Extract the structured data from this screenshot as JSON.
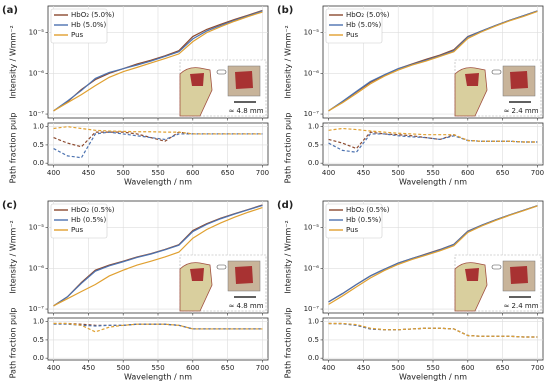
{
  "chart_data": [
    {
      "type": "line",
      "panel_label": "(a)",
      "ylabel": "Intensity / Wmm⁻²",
      "yscale": "log",
      "grid": true,
      "legend": "upper left",
      "annotation": "≈ 4.8 mm",
      "x": [
        400,
        420,
        440,
        460,
        480,
        500,
        520,
        540,
        560,
        580,
        600,
        620,
        640,
        660,
        680,
        700
      ],
      "xlim": [
        392,
        708
      ],
      "xticks": [
        400,
        450,
        500,
        550,
        600,
        650,
        700
      ],
      "ylim": [
        8e-08,
        4.5e-05
      ],
      "yticks": [
        {
          "value": 1e-07,
          "label": "10⁻⁷"
        },
        {
          "value": 1e-06,
          "label": "10⁻⁶"
        },
        {
          "value": 1e-05,
          "label": "10⁻⁵"
        }
      ],
      "series": [
        {
          "name": "HbO₂ (5.0%)",
          "color": "#8c4a2f",
          "values": [
            1.2e-07,
            2e-07,
            4e-07,
            7e-07,
            1e-06,
            1.3e-06,
            1.7e-06,
            2.1e-06,
            2.7e-06,
            3.6e-06,
            8e-06,
            1.2e-05,
            1.6e-05,
            2.1e-05,
            2.7e-05,
            3.5e-05
          ]
        },
        {
          "name": "Hb (5.0%)",
          "color": "#4c72b0",
          "values": [
            1.2e-07,
            2.1e-07,
            3.8e-07,
            7.5e-07,
            1.05e-06,
            1.3e-06,
            1.6e-06,
            2e-06,
            2.6e-06,
            3.4e-06,
            7e-06,
            1.1e-05,
            1.5e-05,
            2e-05,
            2.6e-05,
            3.4e-05
          ]
        },
        {
          "name": "Pus",
          "color": "#e0a030",
          "values": [
            1.2e-07,
            1.9e-07,
            3e-07,
            5e-07,
            8e-07,
            1.1e-06,
            1.4e-06,
            1.8e-06,
            2.3e-06,
            3e-06,
            6e-06,
            1e-05,
            1.4e-05,
            1.9e-05,
            2.5e-05,
            3.2e-05
          ]
        }
      ]
    },
    {
      "type": "line",
      "ylabel": "Path fraction pulp",
      "xlabel": "Wavelength / nm",
      "grid": true,
      "dashed": true,
      "x": [
        400,
        420,
        440,
        460,
        480,
        500,
        520,
        540,
        560,
        580,
        600,
        620,
        640,
        660,
        680,
        700
      ],
      "xlim": [
        392,
        708
      ],
      "xticks": [
        400,
        450,
        500,
        550,
        600,
        650,
        700
      ],
      "ylim": [
        -0.05,
        1.1
      ],
      "yticks": [
        {
          "value": 0,
          "label": "0.0"
        },
        0.5,
        {
          "value": 1,
          "label": "1.0"
        }
      ],
      "series": [
        {
          "color": "#8c4a2f",
          "values": [
            0.7,
            0.55,
            0.45,
            0.85,
            0.85,
            0.85,
            0.8,
            0.7,
            0.6,
            0.85,
            0.8,
            0.8,
            0.8,
            0.8,
            0.8,
            0.8
          ]
        },
        {
          "color": "#4c72b0",
          "values": [
            0.4,
            0.2,
            0.15,
            0.8,
            0.85,
            0.8,
            0.75,
            0.7,
            0.65,
            0.8,
            0.8,
            0.8,
            0.8,
            0.8,
            0.8,
            0.8
          ]
        },
        {
          "color": "#e0a030",
          "values": [
            0.95,
            1.0,
            0.95,
            0.9,
            0.88,
            0.87,
            0.86,
            0.86,
            0.85,
            0.85,
            0.8,
            0.8,
            0.8,
            0.8,
            0.8,
            0.8
          ]
        }
      ]
    },
    {
      "type": "line",
      "panel_label": "(b)",
      "ylabel": "Intensity / Wmm⁻²",
      "yscale": "log",
      "grid": true,
      "legend": "upper left",
      "annotation": "≈ 2.4 mm",
      "x": [
        400,
        420,
        440,
        460,
        480,
        500,
        520,
        540,
        560,
        580,
        600,
        620,
        640,
        660,
        680,
        700
      ],
      "xlim": [
        392,
        708
      ],
      "xticks": [
        400,
        450,
        500,
        550,
        600,
        650,
        700
      ],
      "ylim": [
        8e-08,
        4.5e-05
      ],
      "yticks": [
        {
          "value": 1e-07,
          "label": "10⁻⁷"
        },
        {
          "value": 1e-06,
          "label": "10⁻⁶"
        },
        {
          "value": 1e-05,
          "label": "10⁻⁵"
        }
      ],
      "series": [
        {
          "name": "HbO₂ (5.0%)",
          "color": "#8c4a2f",
          "values": [
            1.2e-07,
            2e-07,
            3.5e-07,
            6e-07,
            9e-07,
            1.3e-06,
            1.7e-06,
            2.2e-06,
            2.8e-06,
            3.8e-06,
            8e-06,
            1.1e-05,
            1.5e-05,
            2e-05,
            2.6e-05,
            3.4e-05
          ]
        },
        {
          "name": "Hb (5.0%)",
          "color": "#4c72b0",
          "values": [
            1.2e-07,
            2.05e-07,
            3.6e-07,
            6.3e-07,
            9.2e-07,
            1.3e-06,
            1.65e-06,
            2.1e-06,
            2.7e-06,
            3.6e-06,
            7.8e-06,
            1.1e-05,
            1.5e-05,
            2e-05,
            2.6e-05,
            3.4e-05
          ]
        },
        {
          "name": "Pus",
          "color": "#e0a030",
          "values": [
            1.2e-07,
            1.9e-07,
            3.2e-07,
            5.5e-07,
            8.5e-07,
            1.2e-06,
            1.6e-06,
            2e-06,
            2.6e-06,
            3.4e-06,
            7.2e-06,
            1.05e-05,
            1.45e-05,
            1.95e-05,
            2.5e-05,
            3.3e-05
          ]
        }
      ]
    },
    {
      "type": "line",
      "ylabel": "Path fraction pulp",
      "xlabel": "Wavelength / nm",
      "grid": true,
      "dashed": true,
      "x": [
        400,
        420,
        440,
        460,
        480,
        500,
        520,
        540,
        560,
        580,
        600,
        620,
        640,
        660,
        680,
        700
      ],
      "xlim": [
        392,
        708
      ],
      "xticks": [
        400,
        450,
        500,
        550,
        600,
        650,
        700
      ],
      "ylim": [
        -0.05,
        1.1
      ],
      "yticks": [
        {
          "value": 0,
          "label": "0.0"
        },
        0.5,
        {
          "value": 1,
          "label": "1.0"
        }
      ],
      "series": [
        {
          "color": "#8c4a2f",
          "values": [
            0.65,
            0.55,
            0.4,
            0.85,
            0.8,
            0.78,
            0.75,
            0.7,
            0.65,
            0.78,
            0.62,
            0.6,
            0.6,
            0.6,
            0.58,
            0.58
          ]
        },
        {
          "color": "#4c72b0",
          "values": [
            0.55,
            0.35,
            0.3,
            0.8,
            0.8,
            0.75,
            0.72,
            0.7,
            0.65,
            0.75,
            0.62,
            0.6,
            0.6,
            0.6,
            0.58,
            0.58
          ]
        },
        {
          "color": "#e0a030",
          "values": [
            0.9,
            0.95,
            0.92,
            0.88,
            0.85,
            0.82,
            0.8,
            0.78,
            0.78,
            0.78,
            0.62,
            0.6,
            0.6,
            0.6,
            0.58,
            0.58
          ]
        }
      ]
    },
    {
      "type": "line",
      "panel_label": "(c)",
      "ylabel": "Intensity / Wmm⁻²",
      "yscale": "log",
      "grid": true,
      "legend": "upper left",
      "annotation": "≈ 4.8 mm",
      "x": [
        400,
        420,
        440,
        460,
        480,
        500,
        520,
        540,
        560,
        580,
        600,
        620,
        640,
        660,
        680,
        700
      ],
      "xlim": [
        392,
        708
      ],
      "xticks": [
        400,
        450,
        500,
        550,
        600,
        650,
        700
      ],
      "ylim": [
        8e-08,
        4.5e-05
      ],
      "yticks": [
        {
          "value": 1e-07,
          "label": "10⁻⁷"
        },
        {
          "value": 1e-06,
          "label": "10⁻⁶"
        },
        {
          "value": 1e-05,
          "label": "10⁻⁵"
        }
      ],
      "series": [
        {
          "name": "HbO₂ (0.5%)",
          "color": "#8c4a2f",
          "values": [
            1.2e-07,
            2e-07,
            4.5e-07,
            9e-07,
            1.2e-06,
            1.5e-06,
            1.9e-06,
            2.3e-06,
            2.9e-06,
            3.8e-06,
            8.5e-06,
            1.25e-05,
            1.7e-05,
            2.2e-05,
            2.8e-05,
            3.6e-05
          ]
        },
        {
          "name": "Hb (0.5%)",
          "color": "#4c72b0",
          "values": [
            1.2e-07,
            2e-07,
            4.3e-07,
            8.5e-07,
            1.15e-06,
            1.45e-06,
            1.85e-06,
            2.25e-06,
            2.85e-06,
            3.7e-06,
            8e-06,
            1.2e-05,
            1.65e-05,
            2.15e-05,
            2.75e-05,
            3.5e-05
          ]
        },
        {
          "name": "Pus",
          "color": "#e0a030",
          "values": [
            1.2e-07,
            1.8e-07,
            2.7e-07,
            4e-07,
            6.5e-07,
            9e-07,
            1.2e-06,
            1.5e-06,
            1.9e-06,
            2.5e-06,
            5.5e-06,
            9e-06,
            1.3e-05,
            1.8e-05,
            2.4e-05,
            3.1e-05
          ]
        }
      ]
    },
    {
      "type": "line",
      "ylabel": "Path fraction pulp",
      "xlabel": "Wavelength / nm",
      "grid": true,
      "dashed": true,
      "x": [
        400,
        420,
        440,
        460,
        480,
        500,
        520,
        540,
        560,
        580,
        600,
        620,
        640,
        660,
        680,
        700
      ],
      "xlim": [
        392,
        708
      ],
      "xticks": [
        400,
        450,
        500,
        550,
        600,
        650,
        700
      ],
      "ylim": [
        -0.05,
        1.1
      ],
      "yticks": [
        {
          "value": 0,
          "label": "0.0"
        },
        0.5,
        {
          "value": 1,
          "label": "1.0"
        }
      ],
      "series": [
        {
          "color": "#8c4a2f",
          "values": [
            0.95,
            0.95,
            0.93,
            0.9,
            0.9,
            0.9,
            0.93,
            0.93,
            0.93,
            0.9,
            0.8,
            0.8,
            0.8,
            0.8,
            0.8,
            0.8
          ]
        },
        {
          "color": "#4c72b0",
          "values": [
            0.93,
            0.93,
            0.9,
            0.88,
            0.9,
            0.9,
            0.93,
            0.93,
            0.93,
            0.9,
            0.8,
            0.8,
            0.8,
            0.8,
            0.8,
            0.8
          ]
        },
        {
          "color": "#e0a030",
          "values": [
            0.95,
            0.95,
            0.9,
            0.72,
            0.85,
            0.9,
            0.93,
            0.93,
            0.93,
            0.9,
            0.8,
            0.8,
            0.8,
            0.8,
            0.8,
            0.8
          ]
        }
      ]
    },
    {
      "type": "line",
      "panel_label": "(d)",
      "ylabel": "Intensity / Wmm⁻²",
      "yscale": "log",
      "grid": true,
      "legend": "upper left",
      "annotation": "≈ 2.4 mm",
      "x": [
        400,
        420,
        440,
        460,
        480,
        500,
        520,
        540,
        560,
        580,
        600,
        620,
        640,
        660,
        680,
        700
      ],
      "xlim": [
        392,
        708
      ],
      "xticks": [
        400,
        450,
        500,
        550,
        600,
        650,
        700
      ],
      "ylim": [
        8e-08,
        4.5e-05
      ],
      "yticks": [
        {
          "value": 1e-07,
          "label": "10⁻⁷"
        },
        {
          "value": 1e-06,
          "label": "10⁻⁶"
        },
        {
          "value": 1e-05,
          "label": "10⁻⁵"
        }
      ],
      "series": [
        {
          "name": "HbO₂ (0.5%)",
          "color": "#8c4a2f",
          "values": [
            1.5e-07,
            2.4e-07,
            4e-07,
            6.5e-07,
            9.5e-07,
            1.35e-06,
            1.75e-06,
            2.25e-06,
            2.9e-06,
            3.9e-06,
            8.2e-06,
            1.15e-05,
            1.55e-05,
            2.05e-05,
            2.65e-05,
            3.45e-05
          ]
        },
        {
          "name": "Hb (0.5%)",
          "color": "#4c72b0",
          "values": [
            1.5e-07,
            2.4e-07,
            4e-07,
            6.5e-07,
            9.5e-07,
            1.35e-06,
            1.75e-06,
            2.2e-06,
            2.85e-06,
            3.85e-06,
            8.1e-06,
            1.15e-05,
            1.55e-05,
            2.05e-05,
            2.65e-05,
            3.45e-05
          ]
        },
        {
          "name": "Pus",
          "color": "#e0a030",
          "values": [
            1.3e-07,
            2.1e-07,
            3.5e-07,
            5.8e-07,
            8.8e-07,
            1.25e-06,
            1.65e-06,
            2.1e-06,
            2.7e-06,
            3.6e-06,
            7.6e-06,
            1.1e-05,
            1.5e-05,
            2e-05,
            2.6e-05,
            3.4e-05
          ]
        }
      ]
    },
    {
      "type": "line",
      "ylabel": "Path fraction pulp",
      "xlabel": "Wavelength / nm",
      "grid": true,
      "dashed": true,
      "x": [
        400,
        420,
        440,
        460,
        480,
        500,
        520,
        540,
        560,
        580,
        600,
        620,
        640,
        660,
        680,
        700
      ],
      "xlim": [
        392,
        708
      ],
      "xticks": [
        400,
        450,
        500,
        550,
        600,
        650,
        700
      ],
      "ylim": [
        -0.05,
        1.1
      ],
      "yticks": [
        {
          "value": 0,
          "label": "0.0"
        },
        0.5,
        {
          "value": 1,
          "label": "1.0"
        }
      ],
      "series": [
        {
          "color": "#8c4a2f",
          "values": [
            0.95,
            0.95,
            0.9,
            0.8,
            0.78,
            0.78,
            0.8,
            0.82,
            0.82,
            0.8,
            0.62,
            0.6,
            0.6,
            0.6,
            0.58,
            0.58
          ]
        },
        {
          "color": "#4c72b0",
          "values": [
            0.95,
            0.94,
            0.9,
            0.8,
            0.78,
            0.78,
            0.8,
            0.82,
            0.82,
            0.8,
            0.62,
            0.6,
            0.6,
            0.6,
            0.58,
            0.58
          ]
        },
        {
          "color": "#e0a030",
          "values": [
            0.95,
            0.95,
            0.92,
            0.82,
            0.78,
            0.78,
            0.8,
            0.82,
            0.82,
            0.8,
            0.62,
            0.6,
            0.6,
            0.6,
            0.58,
            0.58
          ]
        }
      ]
    }
  ]
}
